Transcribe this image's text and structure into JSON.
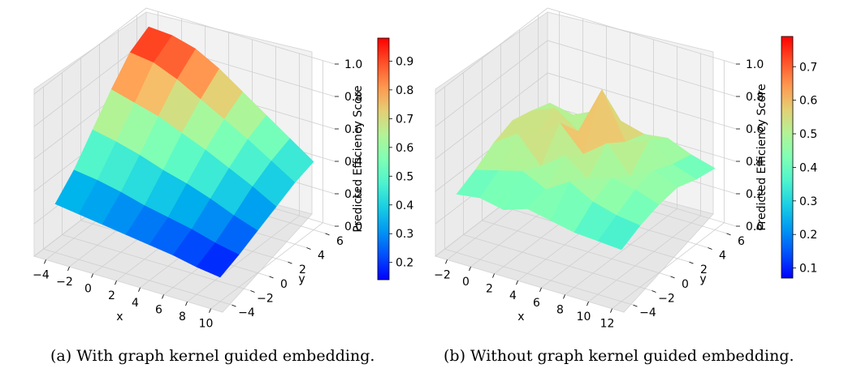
{
  "figure": {
    "captions": [
      "(a) With graph kernel guided embedding.",
      "(b) Without graph kernel guided embedding."
    ]
  },
  "chart_data": [
    {
      "type": "surface3d",
      "panel": "a",
      "xlabel": "x",
      "ylabel": "y",
      "zlabel": "",
      "x_ticks": [
        -4,
        -2,
        0,
        2,
        4,
        6,
        8,
        10
      ],
      "y_ticks": [
        -4,
        -2,
        0,
        2,
        4,
        6
      ],
      "z_ticks": [
        "0.0",
        "0.2",
        "0.4",
        "0.6",
        "0.8",
        "1.0"
      ],
      "xlim": [
        -5,
        11
      ],
      "ylim": [
        -5,
        7
      ],
      "zlim": [
        0,
        1
      ],
      "colorbar": {
        "label": "Predicted Efficiency Score",
        "ticks": [
          "0.2",
          "0.3",
          "0.4",
          "0.5",
          "0.6",
          "0.7",
          "0.8",
          "0.9"
        ],
        "range": [
          0.14,
          0.98
        ],
        "colormap": "rainbow"
      },
      "trend": "score highest (~0.95) at low x / high y, decreasing to ~0.15 at high x / low y",
      "x_grid": [
        -4,
        -2,
        0,
        2,
        4,
        6,
        8,
        10
      ],
      "y_grid": [
        -4,
        -2,
        0,
        2,
        4,
        6
      ],
      "z_grid": [
        [
          0.3,
          0.42,
          0.58,
          0.74,
          0.88,
          0.95
        ],
        [
          0.28,
          0.4,
          0.55,
          0.7,
          0.86,
          0.94
        ],
        [
          0.26,
          0.37,
          0.51,
          0.66,
          0.8,
          0.9
        ],
        [
          0.24,
          0.33,
          0.46,
          0.6,
          0.72,
          0.82
        ],
        [
          0.22,
          0.3,
          0.42,
          0.54,
          0.64,
          0.72
        ],
        [
          0.2,
          0.27,
          0.37,
          0.47,
          0.56,
          0.62
        ],
        [
          0.17,
          0.23,
          0.31,
          0.4,
          0.47,
          0.52
        ],
        [
          0.15,
          0.2,
          0.26,
          0.32,
          0.38,
          0.42
        ]
      ]
    },
    {
      "type": "surface3d",
      "panel": "b",
      "xlabel": "x",
      "ylabel": "y",
      "zlabel": "",
      "x_ticks": [
        -2,
        0,
        2,
        4,
        6,
        8,
        10,
        12
      ],
      "y_ticks": [
        -4,
        -2,
        0,
        2,
        4,
        6
      ],
      "z_ticks": [
        "0.0",
        "0.2",
        "0.4",
        "0.6",
        "0.8",
        "1.0"
      ],
      "xlim": [
        -3,
        13
      ],
      "ylim": [
        -5,
        7
      ],
      "zlim": [
        0,
        1
      ],
      "colorbar": {
        "label": "Predicted Efficiency Score",
        "ticks": [
          "0.1",
          "0.2",
          "0.3",
          "0.4",
          "0.5",
          "0.6",
          "0.7"
        ],
        "range": [
          0.07,
          0.79
        ],
        "colormap": "rainbow"
      },
      "trend": "noisy surface mostly 0.35-0.55 with spiky peaks up to ~0.78",
      "x_grid": [
        -2,
        0,
        2,
        4,
        6,
        8,
        10,
        12
      ],
      "y_grid": [
        -4,
        -2,
        0,
        2,
        4,
        6
      ],
      "z_grid": [
        [
          0.36,
          0.42,
          0.5,
          0.55,
          0.52,
          0.48
        ],
        [
          0.38,
          0.46,
          0.6,
          0.5,
          0.58,
          0.45
        ],
        [
          0.35,
          0.5,
          0.44,
          0.62,
          0.48,
          0.52
        ],
        [
          0.4,
          0.43,
          0.55,
          0.47,
          0.78,
          0.5
        ],
        [
          0.37,
          0.52,
          0.45,
          0.58,
          0.5,
          0.46
        ],
        [
          0.34,
          0.44,
          0.5,
          0.42,
          0.55,
          0.48
        ],
        [
          0.33,
          0.4,
          0.47,
          0.5,
          0.45,
          0.42
        ],
        [
          0.32,
          0.38,
          0.42,
          0.44,
          0.4,
          0.38
        ]
      ]
    }
  ]
}
